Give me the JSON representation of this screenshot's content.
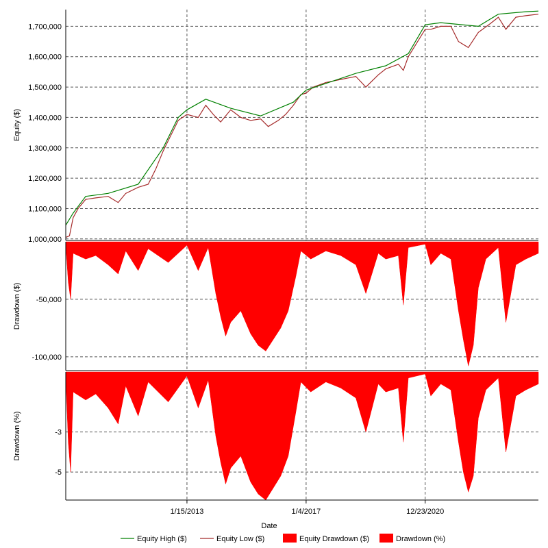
{
  "chart_data": {
    "type": "line",
    "xlabel": "Date",
    "x_ticks": [
      "1/15/2013",
      "1/4/2017",
      "12/23/2020"
    ],
    "x_range": [
      "2009-01-01",
      "2024-10-01"
    ],
    "grid": true,
    "legend_placement": "bottom",
    "legend": [
      {
        "name": "Equity High ($)",
        "color": "#008000",
        "kind": "line"
      },
      {
        "name": "Equity Low ($)",
        "color": "#a52a2a",
        "kind": "line"
      },
      {
        "name": "Equity Drawdown ($)",
        "color": "#ff0000",
        "kind": "swatch"
      },
      {
        "name": "Drawdown (%)",
        "color": "#ff0000",
        "kind": "swatch"
      }
    ],
    "panels": [
      {
        "id": "equity",
        "ylabel": "Equity ($)",
        "ylim": [
          995000,
          1755000
        ],
        "yticks": [
          1000000,
          1100000,
          1200000,
          1300000,
          1400000,
          1500000,
          1600000,
          1700000
        ],
        "ytick_labels": [
          "1,000,000",
          "1,100,000",
          "1,200,000",
          "1,300,000",
          "1,400,000",
          "1,500,000",
          "1,600,000",
          "1,700,000"
        ],
        "series": [
          {
            "name": "Equity Low ($)",
            "color": "#a52a2a",
            "points": [
              [
                "2009-01-01",
                1005000
              ],
              [
                "2009-02-15",
                1010000
              ],
              [
                "2009-04-01",
                1070000
              ],
              [
                "2009-06-01",
                1100000
              ],
              [
                "2009-09-01",
                1130000
              ],
              [
                "2010-01-01",
                1135000
              ],
              [
                "2010-06-01",
                1140000
              ],
              [
                "2010-10-01",
                1120000
              ],
              [
                "2011-01-01",
                1150000
              ],
              [
                "2011-06-01",
                1170000
              ],
              [
                "2011-10-01",
                1180000
              ],
              [
                "2012-01-01",
                1230000
              ],
              [
                "2012-04-01",
                1290000
              ],
              [
                "2012-07-01",
                1340000
              ],
              [
                "2012-10-01",
                1390000
              ],
              [
                "2013-01-15",
                1410000
              ],
              [
                "2013-06-01",
                1400000
              ],
              [
                "2013-09-01",
                1440000
              ],
              [
                "2013-12-01",
                1410000
              ],
              [
                "2014-03-01",
                1385000
              ],
              [
                "2014-07-01",
                1425000
              ],
              [
                "2014-11-01",
                1400000
              ],
              [
                "2015-03-01",
                1390000
              ],
              [
                "2015-07-01",
                1395000
              ],
              [
                "2015-10-01",
                1370000
              ],
              [
                "2016-02-01",
                1390000
              ],
              [
                "2016-05-01",
                1410000
              ],
              [
                "2016-08-01",
                1440000
              ],
              [
                "2016-11-01",
                1475000
              ],
              [
                "2017-01-04",
                1480000
              ],
              [
                "2017-04-01",
                1500000
              ],
              [
                "2017-09-01",
                1515000
              ],
              [
                "2018-03-01",
                1525000
              ],
              [
                "2018-09-01",
                1535000
              ],
              [
                "2019-01-01",
                1500000
              ],
              [
                "2019-06-01",
                1540000
              ],
              [
                "2019-09-01",
                1560000
              ],
              [
                "2020-02-01",
                1575000
              ],
              [
                "2020-04-01",
                1555000
              ],
              [
                "2020-06-01",
                1600000
              ],
              [
                "2020-12-23",
                1690000
              ],
              [
                "2021-03-01",
                1690000
              ],
              [
                "2021-07-01",
                1700000
              ],
              [
                "2021-11-01",
                1700000
              ],
              [
                "2022-02-01",
                1650000
              ],
              [
                "2022-06-01",
                1630000
              ],
              [
                "2022-10-01",
                1680000
              ],
              [
                "2023-03-01",
                1710000
              ],
              [
                "2023-06-01",
                1730000
              ],
              [
                "2023-09-01",
                1690000
              ],
              [
                "2024-01-01",
                1730000
              ],
              [
                "2024-05-01",
                1735000
              ],
              [
                "2024-10-01",
                1740000
              ]
            ]
          },
          {
            "name": "Equity High ($)",
            "color": "#008000",
            "points": [
              [
                "2009-01-01",
                1045000
              ],
              [
                "2009-04-01",
                1085000
              ],
              [
                "2009-09-01",
                1140000
              ],
              [
                "2010-06-01",
                1150000
              ],
              [
                "2011-06-01",
                1180000
              ],
              [
                "2012-04-01",
                1300000
              ],
              [
                "2012-10-01",
                1400000
              ],
              [
                "2013-01-15",
                1425000
              ],
              [
                "2013-09-01",
                1460000
              ],
              [
                "2014-07-01",
                1430000
              ],
              [
                "2015-07-01",
                1405000
              ],
              [
                "2016-08-01",
                1450000
              ],
              [
                "2017-01-04",
                1490000
              ],
              [
                "2018-09-01",
                1545000
              ],
              [
                "2019-09-01",
                1570000
              ],
              [
                "2020-06-01",
                1610000
              ],
              [
                "2020-12-23",
                1705000
              ],
              [
                "2021-07-01",
                1712000
              ],
              [
                "2022-10-01",
                1700000
              ],
              [
                "2023-06-01",
                1740000
              ],
              [
                "2024-05-01",
                1748000
              ],
              [
                "2024-10-01",
                1750000
              ]
            ]
          }
        ]
      },
      {
        "id": "drawdown_dollars",
        "ylabel": "Drawdown ($)",
        "ylim": [
          -112000,
          0
        ],
        "yticks": [
          -50000,
          -100000
        ],
        "ytick_labels": [
          "-50,000",
          "-100,000"
        ],
        "series": [
          {
            "name": "Equity Drawdown ($)",
            "color": "#ff0000",
            "points": [
              [
                "2009-01-01",
                -3000
              ],
              [
                "2009-02-01",
                -35000
              ],
              [
                "2009-03-01",
                -50000
              ],
              [
                "2009-04-01",
                -10000
              ],
              [
                "2009-09-01",
                -15000
              ],
              [
                "2010-01-01",
                -12000
              ],
              [
                "2010-06-01",
                -20000
              ],
              [
                "2010-10-01",
                -28000
              ],
              [
                "2011-01-01",
                -8000
              ],
              [
                "2011-06-01",
                -25000
              ],
              [
                "2011-10-01",
                -6000
              ],
              [
                "2012-06-01",
                -18000
              ],
              [
                "2013-01-15",
                -3000
              ],
              [
                "2013-06-01",
                -25000
              ],
              [
                "2013-10-01",
                -5000
              ],
              [
                "2014-01-01",
                -45000
              ],
              [
                "2014-03-01",
                -65000
              ],
              [
                "2014-05-01",
                -82000
              ],
              [
                "2014-07-01",
                -70000
              ],
              [
                "2014-11-01",
                -60000
              ],
              [
                "2015-03-01",
                -80000
              ],
              [
                "2015-06-01",
                -90000
              ],
              [
                "2015-09-01",
                -95000
              ],
              [
                "2015-12-01",
                -85000
              ],
              [
                "2016-03-01",
                -75000
              ],
              [
                "2016-06-01",
                -60000
              ],
              [
                "2016-09-01",
                -30000
              ],
              [
                "2016-11-01",
                -8000
              ],
              [
                "2017-03-01",
                -15000
              ],
              [
                "2017-09-01",
                -8000
              ],
              [
                "2018-03-01",
                -12000
              ],
              [
                "2018-09-01",
                -20000
              ],
              [
                "2019-01-01",
                -45000
              ],
              [
                "2019-06-01",
                -10000
              ],
              [
                "2019-09-01",
                -15000
              ],
              [
                "2020-02-01",
                -12000
              ],
              [
                "2020-04-01",
                -55000
              ],
              [
                "2020-06-01",
                -5000
              ],
              [
                "2020-12-23",
                -2000
              ],
              [
                "2021-03-01",
                -20000
              ],
              [
                "2021-07-01",
                -10000
              ],
              [
                "2021-11-01",
                -15000
              ],
              [
                "2022-02-01",
                -60000
              ],
              [
                "2022-04-01",
                -85000
              ],
              [
                "2022-06-01",
                -108000
              ],
              [
                "2022-08-01",
                -90000
              ],
              [
                "2022-10-01",
                -40000
              ],
              [
                "2023-01-01",
                -15000
              ],
              [
                "2023-06-01",
                -5000
              ],
              [
                "2023-09-01",
                -70000
              ],
              [
                "2024-01-01",
                -20000
              ],
              [
                "2024-05-01",
                -15000
              ],
              [
                "2024-10-01",
                -10000
              ]
            ]
          }
        ]
      },
      {
        "id": "drawdown_percent",
        "ylabel": "Drawdown (%)",
        "ylim": [
          -6.4,
          0
        ],
        "yticks": [
          -3,
          -5
        ],
        "ytick_labels": [
          "-3",
          "-5"
        ],
        "series": [
          {
            "name": "Drawdown (%)",
            "color": "#ff0000",
            "points": [
              [
                "2009-01-01",
                -0.3
              ],
              [
                "2009-02-01",
                -3.5
              ],
              [
                "2009-03-01",
                -5.0
              ],
              [
                "2009-04-01",
                -1.0
              ],
              [
                "2009-09-01",
                -1.4
              ],
              [
                "2010-01-01",
                -1.1
              ],
              [
                "2010-06-01",
                -1.8
              ],
              [
                "2010-10-01",
                -2.6
              ],
              [
                "2011-01-01",
                -0.7
              ],
              [
                "2011-06-01",
                -2.2
              ],
              [
                "2011-10-01",
                -0.5
              ],
              [
                "2012-06-01",
                -1.5
              ],
              [
                "2013-01-15",
                -0.2
              ],
              [
                "2013-06-01",
                -1.8
              ],
              [
                "2013-10-01",
                -0.4
              ],
              [
                "2014-01-01",
                -3.2
              ],
              [
                "2014-03-01",
                -4.5
              ],
              [
                "2014-05-01",
                -5.6
              ],
              [
                "2014-07-01",
                -4.8
              ],
              [
                "2014-11-01",
                -4.2
              ],
              [
                "2015-03-01",
                -5.5
              ],
              [
                "2015-06-01",
                -6.1
              ],
              [
                "2015-09-01",
                -6.4
              ],
              [
                "2015-12-01",
                -5.8
              ],
              [
                "2016-03-01",
                -5.2
              ],
              [
                "2016-06-01",
                -4.2
              ],
              [
                "2016-09-01",
                -2.0
              ],
              [
                "2016-11-01",
                -0.5
              ],
              [
                "2017-03-01",
                -1.0
              ],
              [
                "2017-09-01",
                -0.5
              ],
              [
                "2018-03-01",
                -0.8
              ],
              [
                "2018-09-01",
                -1.3
              ],
              [
                "2019-01-01",
                -3.0
              ],
              [
                "2019-06-01",
                -0.6
              ],
              [
                "2019-09-01",
                -1.0
              ],
              [
                "2020-02-01",
                -0.8
              ],
              [
                "2020-04-01",
                -3.5
              ],
              [
                "2020-06-01",
                -0.3
              ],
              [
                "2020-12-23",
                -0.1
              ],
              [
                "2021-03-01",
                -1.2
              ],
              [
                "2021-07-01",
                -0.6
              ],
              [
                "2021-11-01",
                -0.9
              ],
              [
                "2022-02-01",
                -3.5
              ],
              [
                "2022-04-01",
                -5.0
              ],
              [
                "2022-06-01",
                -6.0
              ],
              [
                "2022-08-01",
                -5.2
              ],
              [
                "2022-10-01",
                -2.3
              ],
              [
                "2023-01-01",
                -0.9
              ],
              [
                "2023-06-01",
                -0.3
              ],
              [
                "2023-09-01",
                -4.0
              ],
              [
                "2024-01-01",
                -1.2
              ],
              [
                "2024-05-01",
                -0.9
              ],
              [
                "2024-10-01",
                -0.6
              ]
            ]
          }
        ]
      }
    ]
  }
}
